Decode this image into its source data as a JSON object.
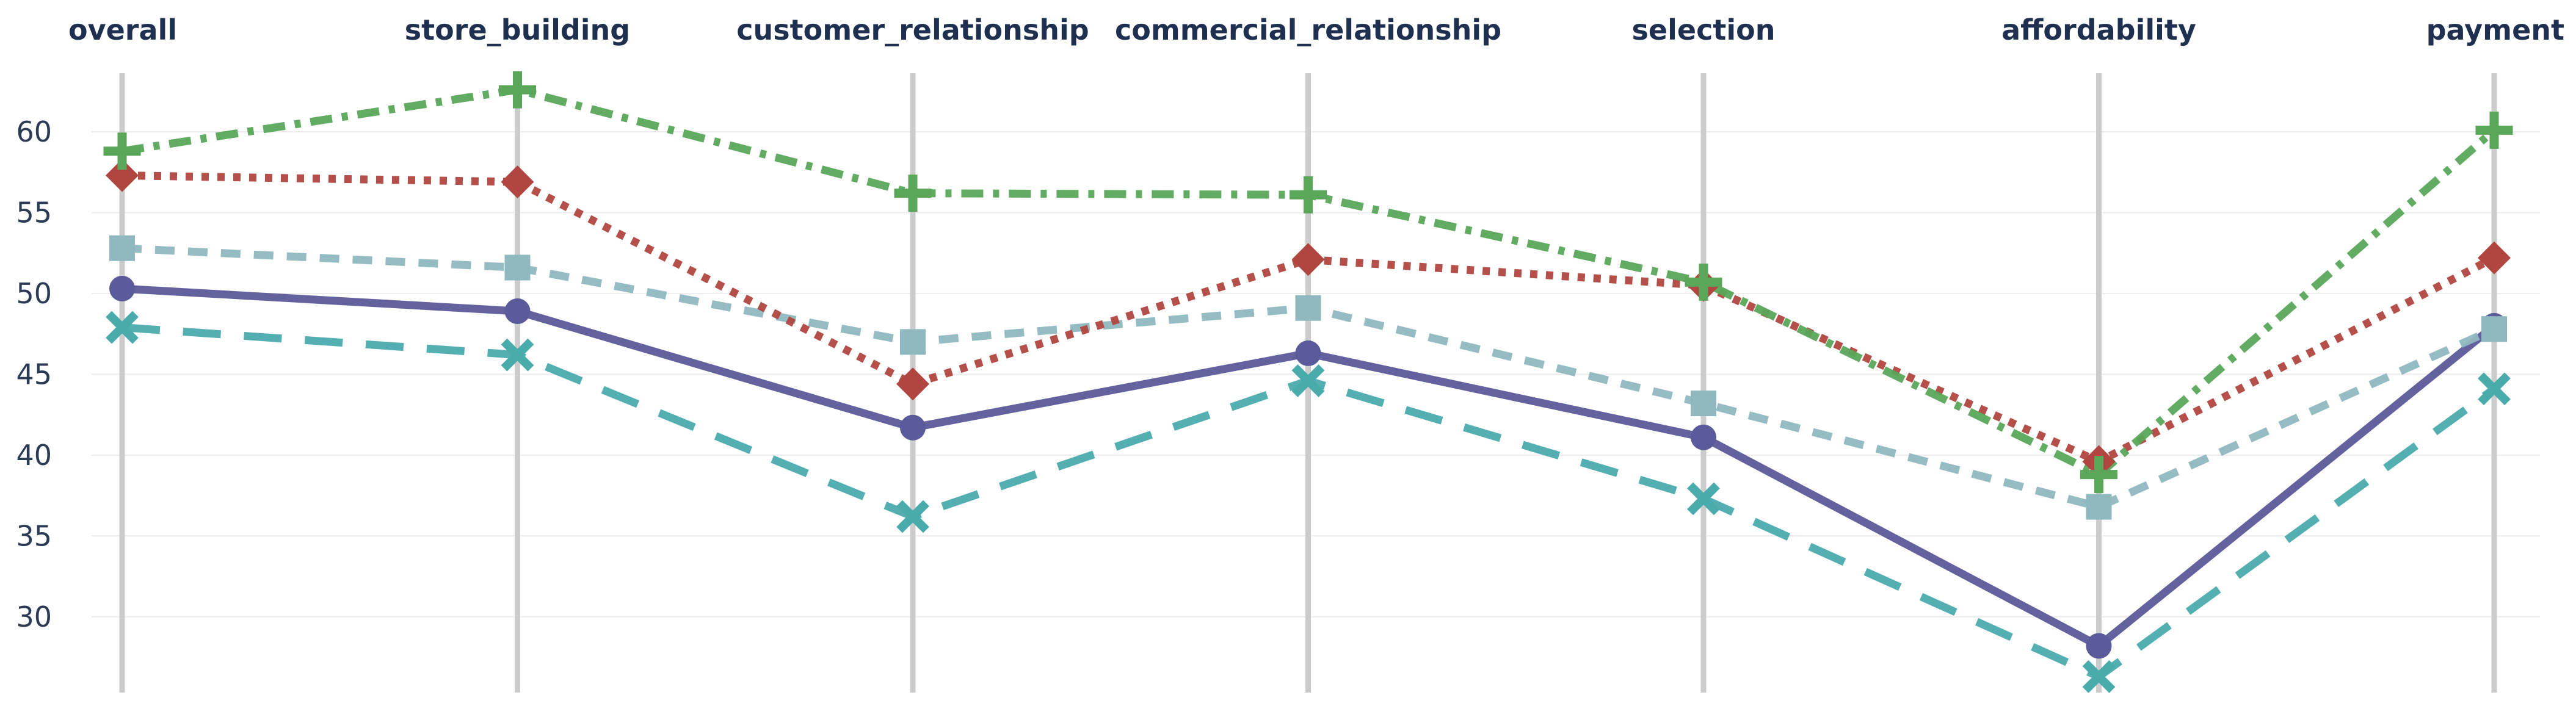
{
  "chart_data": {
    "type": "line",
    "categories": [
      "overall",
      "store_building",
      "customer_relationship",
      "commercial_relationship",
      "selection",
      "affordability",
      "payment"
    ],
    "y_ticks": [
      "30",
      "35",
      "40",
      "45",
      "50",
      "55",
      "60"
    ],
    "ylim": [
      25.5,
      64
    ],
    "grid": true,
    "legend": "none",
    "series": [
      {
        "color": "#5b5a9a",
        "dash": "solid",
        "marker": "circle",
        "values": [
          50.3,
          48.9,
          41.7,
          46.3,
          41.1,
          28.2,
          48.0
        ]
      },
      {
        "color": "#8fb8bf",
        "dash": "dashed",
        "marker": "square",
        "values": [
          52.8,
          51.6,
          47.0,
          49.1,
          43.2,
          36.8,
          47.8
        ]
      },
      {
        "color": "#4aabad",
        "dash": "longdash",
        "marker": "x",
        "values": [
          47.9,
          46.2,
          36.2,
          44.6,
          37.3,
          26.3,
          44.1
        ]
      },
      {
        "color": "#b0463f",
        "dash": "dotted",
        "marker": "diamond",
        "values": [
          57.3,
          56.9,
          44.4,
          52.1,
          50.5,
          39.6,
          52.2
        ]
      },
      {
        "color": "#5aa75a",
        "dash": "dashdot",
        "marker": "cross",
        "values": [
          58.8,
          62.6,
          56.2,
          56.1,
          50.7,
          38.8,
          60.1
        ]
      }
    ]
  }
}
